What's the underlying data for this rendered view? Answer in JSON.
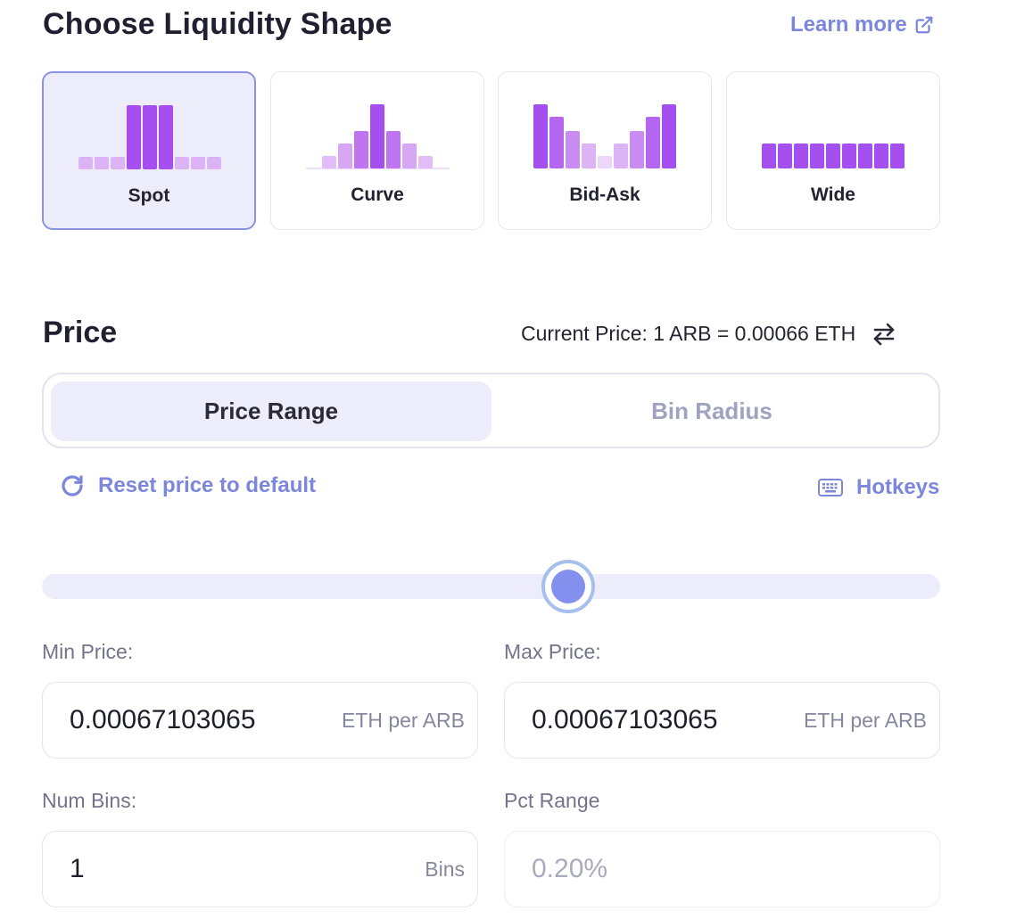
{
  "header": {
    "title": "Choose Liquidity Shape",
    "learn_more": "Learn more"
  },
  "shapes": [
    {
      "label": "Spot",
      "selected": true
    },
    {
      "label": "Curve",
      "selected": false
    },
    {
      "label": "Bid-Ask",
      "selected": false
    },
    {
      "label": "Wide",
      "selected": false
    }
  ],
  "price": {
    "title": "Price",
    "current_price": "Current Price: 1 ARB = 0.00066 ETH"
  },
  "mode_toggle": {
    "options": [
      "Price Range",
      "Bin Radius"
    ],
    "selected": "Price Range"
  },
  "actions": {
    "reset": "Reset price to default",
    "hotkeys": "Hotkeys"
  },
  "slider": {
    "position_fraction": 0.59
  },
  "fields": {
    "min_price": {
      "label": "Min Price:",
      "value": "0.00067103065",
      "unit": "ETH per ARB"
    },
    "max_price": {
      "label": "Max Price:",
      "value": "0.00067103065",
      "unit": "ETH per ARB"
    },
    "num_bins": {
      "label": "Num Bins:",
      "value": "1",
      "unit": "Bins"
    },
    "pct_range": {
      "label": "Pct Range",
      "value": "0.20%"
    }
  },
  "colors": {
    "accent": "#7b86dc",
    "selected_card_bg": "#ececfb",
    "bar_strong": "#a64ff0",
    "bar_light": "#dcb4f6",
    "slider_thumb": "#8490ee"
  },
  "icons": [
    "external-link-icon",
    "swap-arrows-icon",
    "refresh-icon",
    "keyboard-icon"
  ]
}
